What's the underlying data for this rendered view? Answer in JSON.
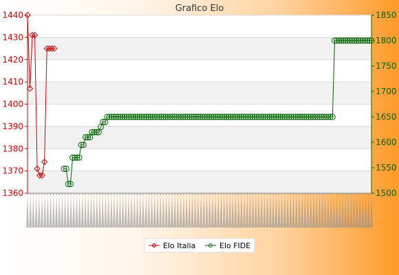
{
  "chart_data": {
    "type": "line",
    "title": "Grafico Elo",
    "xlabel": "",
    "ylabel_left": "",
    "ylabel_right": "",
    "ylim_left": [
      1360,
      1440
    ],
    "ylim_right": [
      1500,
      1850
    ],
    "yticks_left": [
      1360,
      1370,
      1380,
      1390,
      1400,
      1410,
      1420,
      1430,
      1440
    ],
    "yticks_right": [
      1500,
      1550,
      1600,
      1650,
      1700,
      1750,
      1800,
      1850
    ],
    "grid": true,
    "legend_position": "bottom-center",
    "series": [
      {
        "name": "Elo Italia",
        "axis": "left",
        "color": "#cc0000",
        "marker": "diamond",
        "values": [
          1440,
          1407,
          1431,
          1431,
          1371,
          1368,
          1368,
          1374,
          1425,
          1425,
          1425,
          1425
        ]
      },
      {
        "name": "Elo FIDE",
        "axis": "right",
        "color": "#006600",
        "marker": "circle",
        "values": [
          1548,
          1548,
          1518,
          1518,
          1570,
          1570,
          1570,
          1570,
          1595,
          1595,
          1610,
          1610,
          1610,
          1620,
          1620,
          1620,
          1620,
          1630,
          1640,
          1640,
          1650,
          1650,
          1650,
          1650,
          1650,
          1650,
          1650,
          1650,
          1650,
          1650,
          1650,
          1650,
          1650,
          1650,
          1650,
          1650,
          1650,
          1650,
          1650,
          1650,
          1650,
          1650,
          1650,
          1650,
          1650,
          1650,
          1650,
          1650,
          1650,
          1650,
          1650,
          1650,
          1650,
          1650,
          1650,
          1650,
          1650,
          1650,
          1650,
          1650,
          1650,
          1650,
          1650,
          1650,
          1650,
          1650,
          1650,
          1650,
          1650,
          1650,
          1650,
          1650,
          1650,
          1650,
          1650,
          1650,
          1650,
          1650,
          1650,
          1650,
          1650,
          1650,
          1650,
          1650,
          1650,
          1650,
          1650,
          1650,
          1650,
          1650,
          1650,
          1650,
          1650,
          1650,
          1650,
          1650,
          1650,
          1650,
          1650,
          1650,
          1650,
          1650,
          1650,
          1650,
          1650,
          1650,
          1650,
          1650,
          1650,
          1650,
          1650,
          1650,
          1650,
          1650,
          1650,
          1650,
          1650,
          1650,
          1650,
          1650,
          1650,
          1650,
          1650,
          1650,
          1650,
          1800,
          1800,
          1800,
          1800,
          1800,
          1800,
          1800,
          1800,
          1800,
          1800,
          1800,
          1800,
          1800,
          1800,
          1800,
          1800,
          1800,
          1800
        ]
      }
    ]
  }
}
